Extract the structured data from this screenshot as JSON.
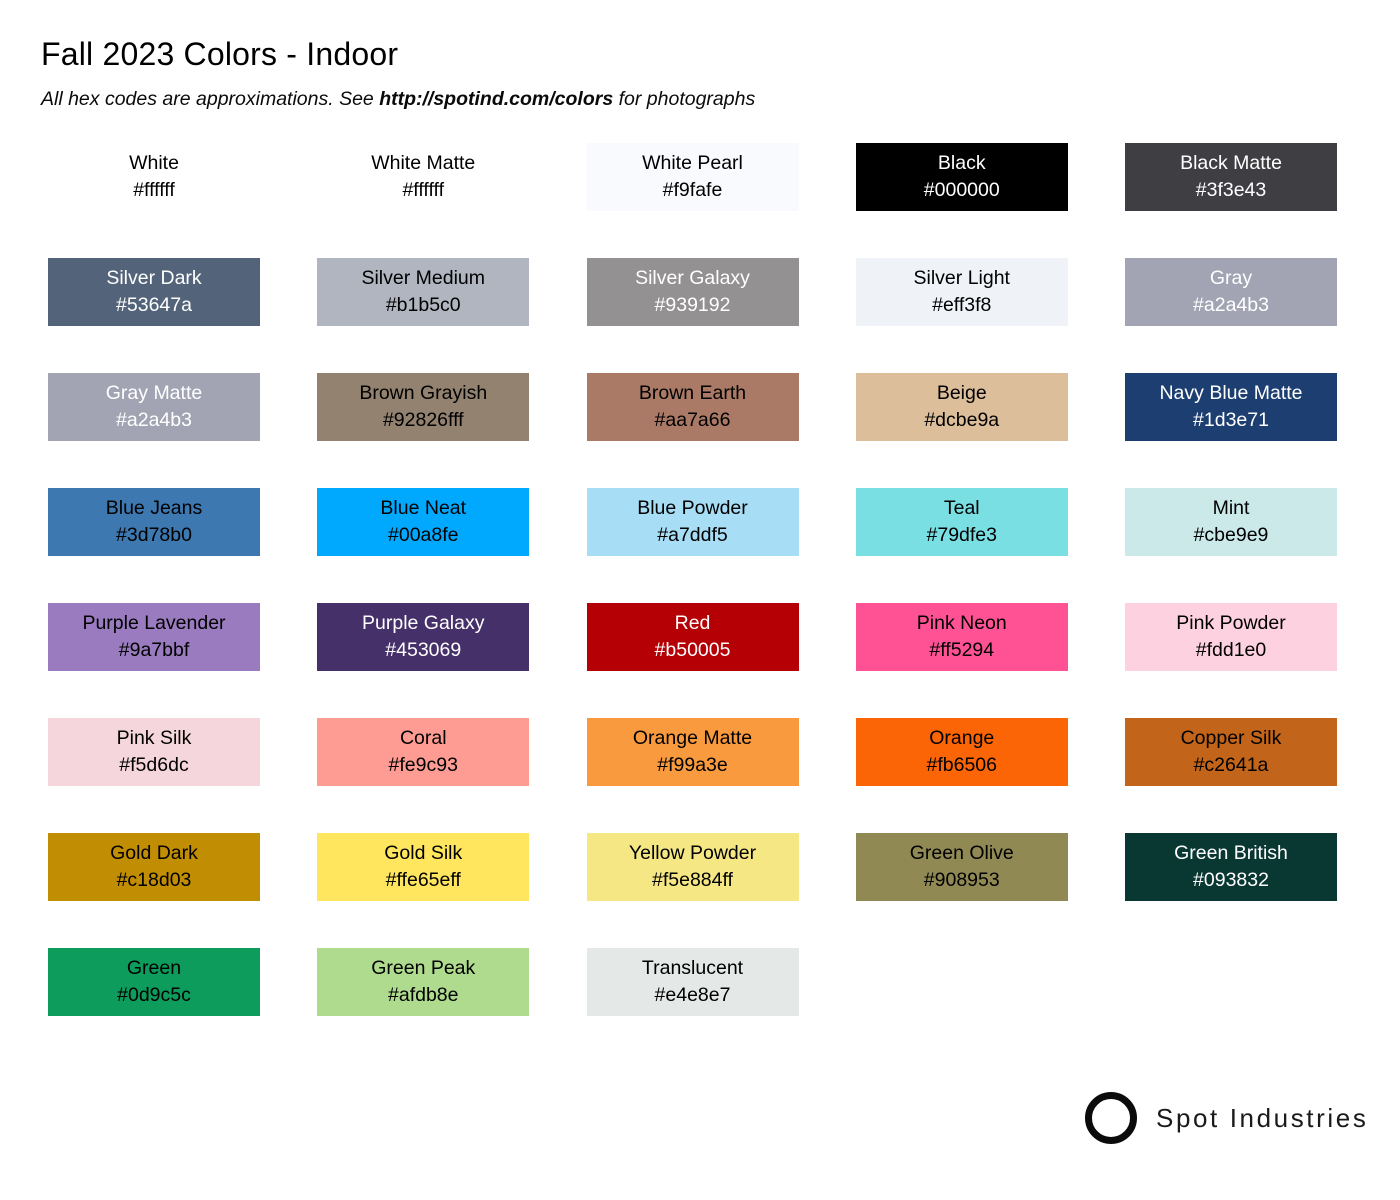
{
  "page": {
    "title": "Fall 2023 Colors - Indoor",
    "subtitle_prefix": "All hex codes are approximations. See ",
    "subtitle_link": "http://spotind.com/colors",
    "subtitle_suffix": " for photographs"
  },
  "palette_meta": {
    "text_dark": "#000000",
    "text_light": "#ffffff",
    "background": "#ffffff"
  },
  "swatches": [
    {
      "name": "White",
      "hex": "#ffffff",
      "bg": "#ffffff",
      "fg": "#000000"
    },
    {
      "name": "White Matte",
      "hex": "#ffffff",
      "bg": "#ffffff",
      "fg": "#000000"
    },
    {
      "name": "White Pearl",
      "hex": "#f9fafe",
      "bg": "#f9fafe",
      "fg": "#000000"
    },
    {
      "name": "Black",
      "hex": "#000000",
      "bg": "#000000",
      "fg": "#ffffff"
    },
    {
      "name": "Black Matte",
      "hex": "#3f3e43",
      "bg": "#3f3e43",
      "fg": "#ffffff"
    },
    {
      "name": "Silver Dark",
      "hex": "#53647a",
      "bg": "#53647a",
      "fg": "#ffffff"
    },
    {
      "name": "Silver Medium",
      "hex": "#b1b5c0",
      "bg": "#b1b5c0",
      "fg": "#000000"
    },
    {
      "name": "Silver Galaxy",
      "hex": "#939192",
      "bg": "#939192",
      "fg": "#ffffff"
    },
    {
      "name": "Silver Light",
      "hex": "#eff3f8",
      "bg": "#eff3f8",
      "fg": "#000000"
    },
    {
      "name": "Gray",
      "hex": "#a2a4b3",
      "bg": "#a2a4b3",
      "fg": "#ffffff"
    },
    {
      "name": "Gray Matte",
      "hex": "#a2a4b3",
      "bg": "#a2a4b3",
      "fg": "#ffffff"
    },
    {
      "name": "Brown Grayish",
      "hex": "#92826fff",
      "bg": "#92826f",
      "fg": "#000000"
    },
    {
      "name": "Brown Earth",
      "hex": "#aa7a66",
      "bg": "#aa7a66",
      "fg": "#000000"
    },
    {
      "name": "Beige",
      "hex": "#dcbe9a",
      "bg": "#dcbe9a",
      "fg": "#000000"
    },
    {
      "name": "Navy Blue Matte",
      "hex": "#1d3e71",
      "bg": "#1d3e71",
      "fg": "#ffffff"
    },
    {
      "name": "Blue Jeans",
      "hex": "#3d78b0",
      "bg": "#3d78b0",
      "fg": "#000000"
    },
    {
      "name": "Blue Neat",
      "hex": "#00a8fe",
      "bg": "#00a8fe",
      "fg": "#000000"
    },
    {
      "name": "Blue Powder",
      "hex": "#a7ddf5",
      "bg": "#a7ddf5",
      "fg": "#000000"
    },
    {
      "name": "Teal",
      "hex": "#79dfe3",
      "bg": "#79dfe3",
      "fg": "#000000"
    },
    {
      "name": "Mint",
      "hex": "#cbe9e9",
      "bg": "#cbe9e9",
      "fg": "#000000"
    },
    {
      "name": "Purple Lavender",
      "hex": "#9a7bbf",
      "bg": "#9a7bbf",
      "fg": "#000000"
    },
    {
      "name": "Purple Galaxy",
      "hex": "#453069",
      "bg": "#453069",
      "fg": "#ffffff"
    },
    {
      "name": "Red",
      "hex": "#b50005",
      "bg": "#b50005",
      "fg": "#ffffff"
    },
    {
      "name": "Pink Neon",
      "hex": "#ff5294",
      "bg": "#ff5294",
      "fg": "#000000"
    },
    {
      "name": "Pink Powder",
      "hex": "#fdd1e0",
      "bg": "#fdd1e0",
      "fg": "#000000"
    },
    {
      "name": "Pink Silk",
      "hex": "#f5d6dc",
      "bg": "#f5d6dc",
      "fg": "#000000"
    },
    {
      "name": "Coral",
      "hex": "#fe9c93",
      "bg": "#fe9c93",
      "fg": "#000000"
    },
    {
      "name": "Orange Matte",
      "hex": "#f99a3e",
      "bg": "#f99a3e",
      "fg": "#000000"
    },
    {
      "name": "Orange",
      "hex": "#fb6506",
      "bg": "#fb6506",
      "fg": "#000000"
    },
    {
      "name": "Copper Silk",
      "hex": "#c2641a",
      "bg": "#c2641a",
      "fg": "#000000"
    },
    {
      "name": "Gold Dark",
      "hex": "#c18d03",
      "bg": "#c18d03",
      "fg": "#000000"
    },
    {
      "name": "Gold Silk",
      "hex": "#ffe65eff",
      "bg": "#ffe65e",
      "fg": "#000000"
    },
    {
      "name": "Yellow Powder",
      "hex": "#f5e884ff",
      "bg": "#f5e884",
      "fg": "#000000"
    },
    {
      "name": "Green Olive",
      "hex": "#908953",
      "bg": "#908953",
      "fg": "#000000"
    },
    {
      "name": "Green British",
      "hex": "#093832",
      "bg": "#093832",
      "fg": "#ffffff"
    },
    {
      "name": "Green",
      "hex": "#0d9c5c",
      "bg": "#0d9c5c",
      "fg": "#000000"
    },
    {
      "name": "Green Peak",
      "hex": "#afdb8e",
      "bg": "#afdb8e",
      "fg": "#000000"
    },
    {
      "name": "Translucent",
      "hex": "#e4e8e7",
      "bg": "#e4e8e7",
      "fg": "#000000"
    }
  ],
  "footer": {
    "brand": "Spot Industries"
  }
}
